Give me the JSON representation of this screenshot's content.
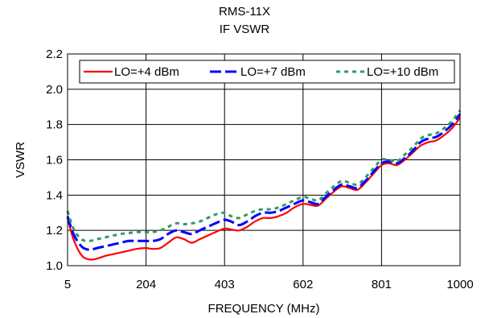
{
  "chart_data": {
    "type": "line",
    "title": "RMS-11X",
    "subtitle": "IF VSWR",
    "xlabel": "FREQUENCY (MHz)",
    "ylabel": "VSWR",
    "xlim": [
      5,
      1000
    ],
    "ylim": [
      1.0,
      2.2
    ],
    "x_ticks": [
      "5",
      "204",
      "403",
      "602",
      "801",
      "1000"
    ],
    "y_ticks": [
      "1.0",
      "1.2",
      "1.4",
      "1.6",
      "1.8",
      "2.0",
      "2.2"
    ],
    "grid": true,
    "legend_position": "top",
    "x": [
      5,
      20,
      40,
      60,
      80,
      100,
      120,
      140,
      160,
      180,
      204,
      220,
      240,
      260,
      280,
      300,
      320,
      340,
      360,
      380,
      403,
      420,
      440,
      460,
      480,
      500,
      520,
      540,
      560,
      580,
      602,
      620,
      640,
      660,
      680,
      700,
      720,
      740,
      760,
      780,
      801,
      820,
      840,
      860,
      880,
      900,
      920,
      940,
      960,
      980,
      1000
    ],
    "series": [
      {
        "name": "LO=+4 dBm",
        "color": "#ff0000",
        "dash": "solid",
        "values": [
          1.27,
          1.15,
          1.06,
          1.035,
          1.04,
          1.055,
          1.065,
          1.075,
          1.085,
          1.095,
          1.1,
          1.095,
          1.1,
          1.13,
          1.16,
          1.15,
          1.13,
          1.15,
          1.17,
          1.19,
          1.21,
          1.205,
          1.2,
          1.22,
          1.25,
          1.27,
          1.27,
          1.28,
          1.3,
          1.33,
          1.35,
          1.345,
          1.34,
          1.38,
          1.42,
          1.45,
          1.44,
          1.43,
          1.47,
          1.52,
          1.57,
          1.58,
          1.57,
          1.6,
          1.64,
          1.68,
          1.7,
          1.71,
          1.74,
          1.78,
          1.84
        ]
      },
      {
        "name": "LO=+7 dBm",
        "color": "#0000ff",
        "dash": "long-dash",
        "values": [
          1.28,
          1.18,
          1.11,
          1.09,
          1.1,
          1.11,
          1.12,
          1.13,
          1.14,
          1.14,
          1.14,
          1.14,
          1.15,
          1.18,
          1.2,
          1.19,
          1.18,
          1.2,
          1.22,
          1.24,
          1.26,
          1.25,
          1.23,
          1.25,
          1.28,
          1.3,
          1.3,
          1.31,
          1.33,
          1.35,
          1.37,
          1.36,
          1.35,
          1.39,
          1.43,
          1.46,
          1.45,
          1.44,
          1.48,
          1.53,
          1.58,
          1.59,
          1.58,
          1.61,
          1.65,
          1.7,
          1.72,
          1.73,
          1.76,
          1.8,
          1.86
        ]
      },
      {
        "name": "LO=+10 dBm",
        "color": "#339966",
        "dash": "short-dash",
        "values": [
          1.31,
          1.21,
          1.15,
          1.14,
          1.15,
          1.16,
          1.17,
          1.18,
          1.185,
          1.19,
          1.19,
          1.19,
          1.2,
          1.22,
          1.24,
          1.235,
          1.24,
          1.25,
          1.27,
          1.29,
          1.3,
          1.28,
          1.27,
          1.29,
          1.31,
          1.32,
          1.32,
          1.33,
          1.35,
          1.37,
          1.39,
          1.38,
          1.37,
          1.41,
          1.45,
          1.48,
          1.47,
          1.46,
          1.5,
          1.55,
          1.6,
          1.6,
          1.59,
          1.63,
          1.67,
          1.72,
          1.74,
          1.75,
          1.78,
          1.82,
          1.88
        ]
      }
    ]
  }
}
